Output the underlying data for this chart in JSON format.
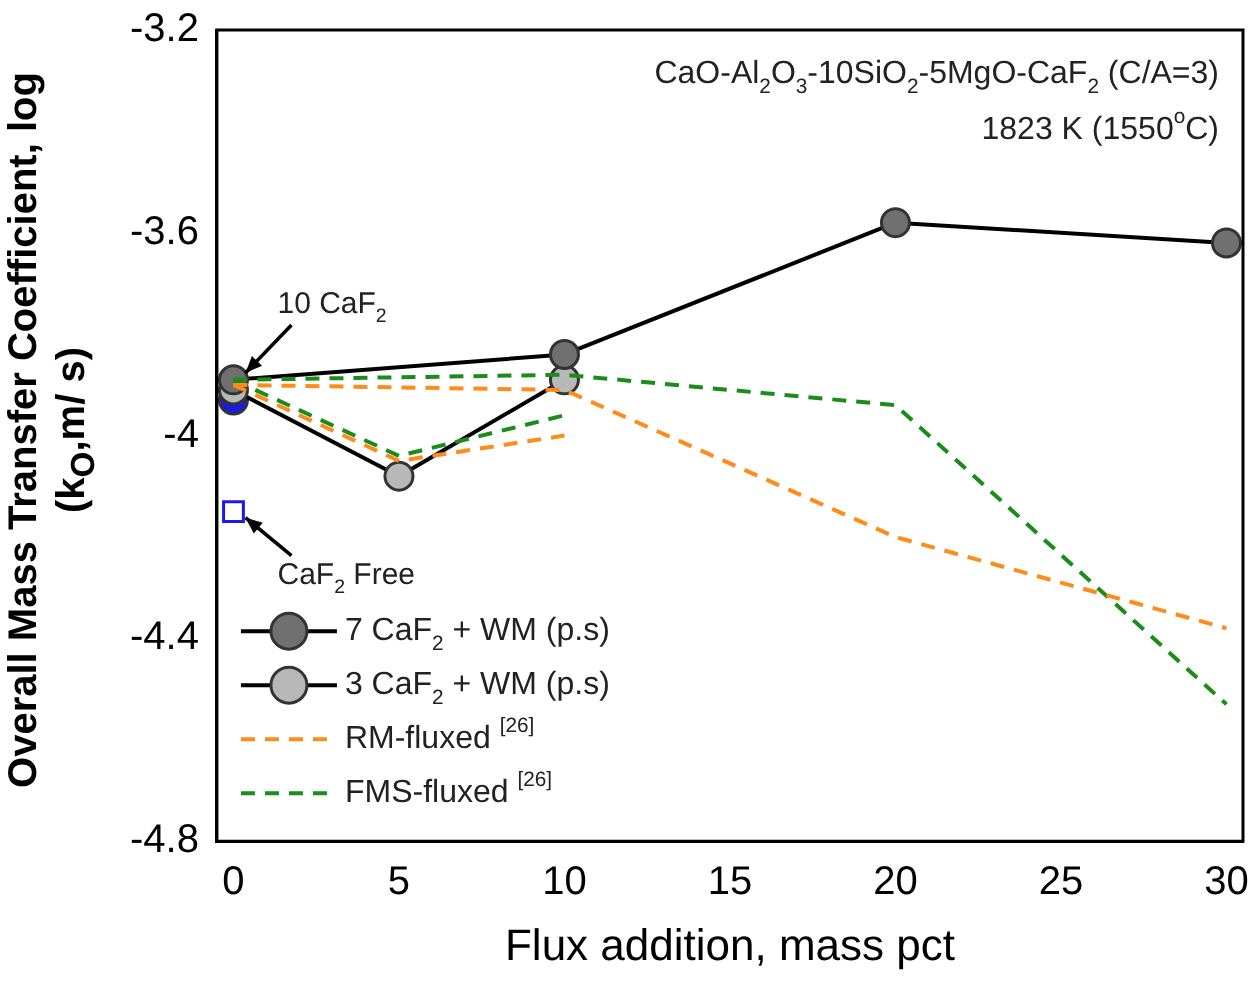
{
  "chart_data": {
    "type": "line",
    "xlabel": "Flux addition, mass pct",
    "ylabel": "Overall Mass Transfer Coefficient, log (k$_{O}$,m/ s)",
    "xlim": [
      -0.5,
      30.5
    ],
    "xticks": [
      0,
      5,
      10,
      15,
      20,
      25,
      30
    ],
    "ylim": [
      -4.8,
      -3.2
    ],
    "yticks": [
      -4.8,
      -4.4,
      -4.0,
      -3.6,
      -3.2
    ],
    "grid": false,
    "legend": "bottom left",
    "series": [
      {
        "name": "7 CaF$_{2}$ + WM (p.s)",
        "color": "#707070",
        "x": [
          0,
          10,
          20,
          30
        ],
        "values": [
          -3.89,
          -3.84,
          -3.58,
          -3.62
        ],
        "marker": "circle",
        "line_style": "solid"
      },
      {
        "name": "3 CaF$_{2}$ + WM (p.s)",
        "color": "#b8b8b8",
        "x": [
          0,
          5,
          10
        ],
        "values": [
          -3.91,
          -4.08,
          -3.89
        ],
        "marker": "circle",
        "line_style": "solid"
      },
      {
        "name": "RM-fluxed $^{[26]}$",
        "color": "#ff8c1a",
        "x": [
          0,
          10,
          20,
          30
        ],
        "values": [
          -3.9,
          -3.91,
          -4.2,
          -4.38
        ],
        "marker": "none",
        "line_style": "dashed"
      },
      {
        "color": "#ff8c1a",
        "x": [
          0,
          5,
          10
        ],
        "values": [
          -3.9,
          -4.05,
          -4.0
        ],
        "marker": "none",
        "line_style": "dashed"
      },
      {
        "name": "FMS-fluxed $^{[26]}$",
        "color": "#1a8c1a",
        "x": [
          0,
          10,
          20,
          30
        ],
        "values": [
          -3.89,
          -3.88,
          -3.94,
          -4.53
        ],
        "marker": "none",
        "line_style": "dashed"
      },
      {
        "color": "#1a8c1a",
        "x": [
          0,
          5,
          10
        ],
        "values": [
          -3.89,
          -4.04,
          -3.96
        ],
        "marker": "none",
        "line_style": "dashed"
      },
      {
        "type": "scatter",
        "color": "#1a1ae6",
        "x": [
          0
        ],
        "values": [
          -3.93
        ],
        "marker": "circle"
      },
      {
        "type": "scatter",
        "color": "#1a1ae6",
        "x": [
          0
        ],
        "values": [
          -4.15
        ],
        "marker": "square"
      }
    ],
    "annotations": [
      "CaO-Al$_{2}$O$_{3}$-10SiO$_{2}$-5MgO-CaF$_{2}$ (C/A=3)",
      "1823 K (1550$^{o}$C)",
      {
        "text": "10 CaF$_{2}$",
        "x": 0,
        "y": -3.9
      },
      {
        "text": "CaF$_{2}$ Free",
        "x": 0,
        "y": -4.15
      }
    ]
  }
}
